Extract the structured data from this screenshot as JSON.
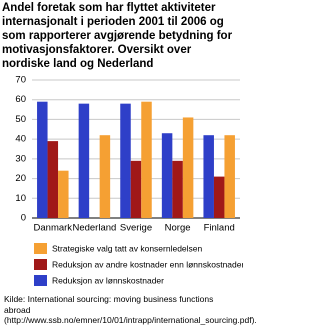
{
  "chart_data": {
    "type": "bar",
    "title": "Andel foretak som har flyttet aktiviteter internasjonalt i perioden 2001 til 2006 og som rapporterer avgjørende betydning for motivasjonsfaktorer. Oversikt over nordiske land og Nederland",
    "categories": [
      "Danmark",
      "Nederland",
      "Sverige",
      "Norge",
      "Finland"
    ],
    "series": [
      {
        "name": "Reduksjon av lønnskostnader",
        "color": "#2e3fc8",
        "values": [
          59,
          58,
          58,
          43,
          42
        ]
      },
      {
        "name": "Reduksjon av andre kostnader enn lønnskostnader",
        "color": "#a01818",
        "values": [
          39,
          null,
          29,
          29,
          21
        ]
      },
      {
        "name": "Strategiske valg tatt av konsernledelsen",
        "color": "#f5a033",
        "values": [
          24,
          42,
          59,
          51,
          42
        ]
      }
    ],
    "ylim": [
      0,
      70
    ],
    "yticks": [
      0,
      10,
      20,
      30,
      40,
      50,
      60,
      70
    ],
    "grid": true,
    "source": "Kilde:  International sourcing: moving business functions abroad (http://www.ssb.no/emner/10/01/intrapp/international_sourcing.pdf)."
  }
}
